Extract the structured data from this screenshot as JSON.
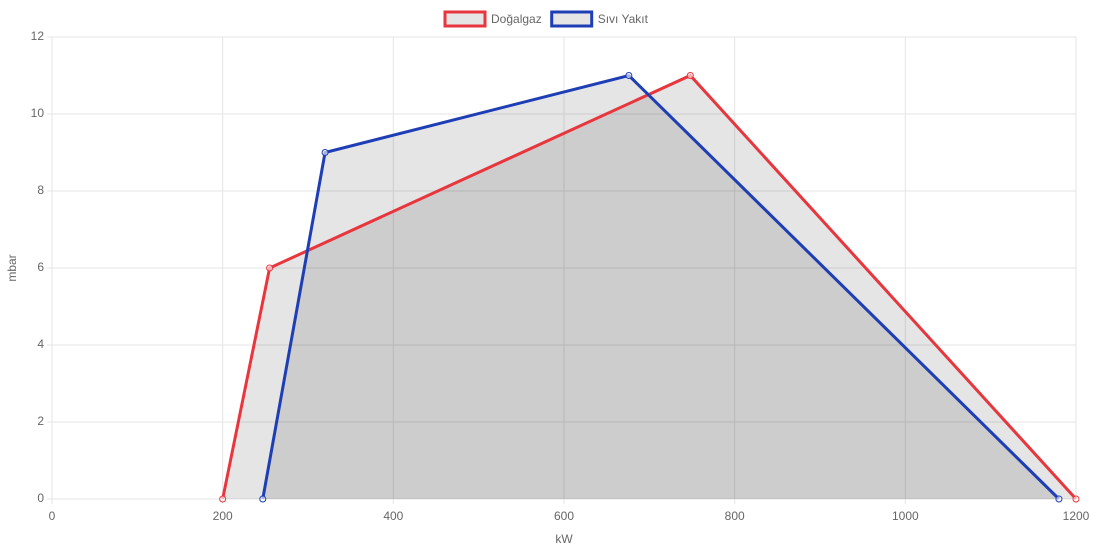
{
  "chart_data": {
    "type": "line",
    "x_label": "kW",
    "y_label": "mbar",
    "xlim": [
      0,
      1200
    ],
    "xticks": [
      0,
      200,
      400,
      600,
      800,
      1000,
      1200
    ],
    "ylim": [
      0,
      12
    ],
    "yticks": [
      0,
      2,
      4,
      6,
      8,
      10,
      12
    ],
    "grid": true,
    "fill": true,
    "legend": "top",
    "series": [
      {
        "name": "Doğalgaz",
        "color": "#e8363e",
        "x": [
          200,
          255,
          748,
          1200
        ],
        "values": [
          0,
          6,
          11,
          0
        ]
      },
      {
        "name": "Sıvı Yakıt",
        "color": "#1e3eb5",
        "x": [
          247,
          320,
          676,
          1180
        ],
        "values": [
          0,
          9,
          11,
          0
        ]
      }
    ]
  }
}
